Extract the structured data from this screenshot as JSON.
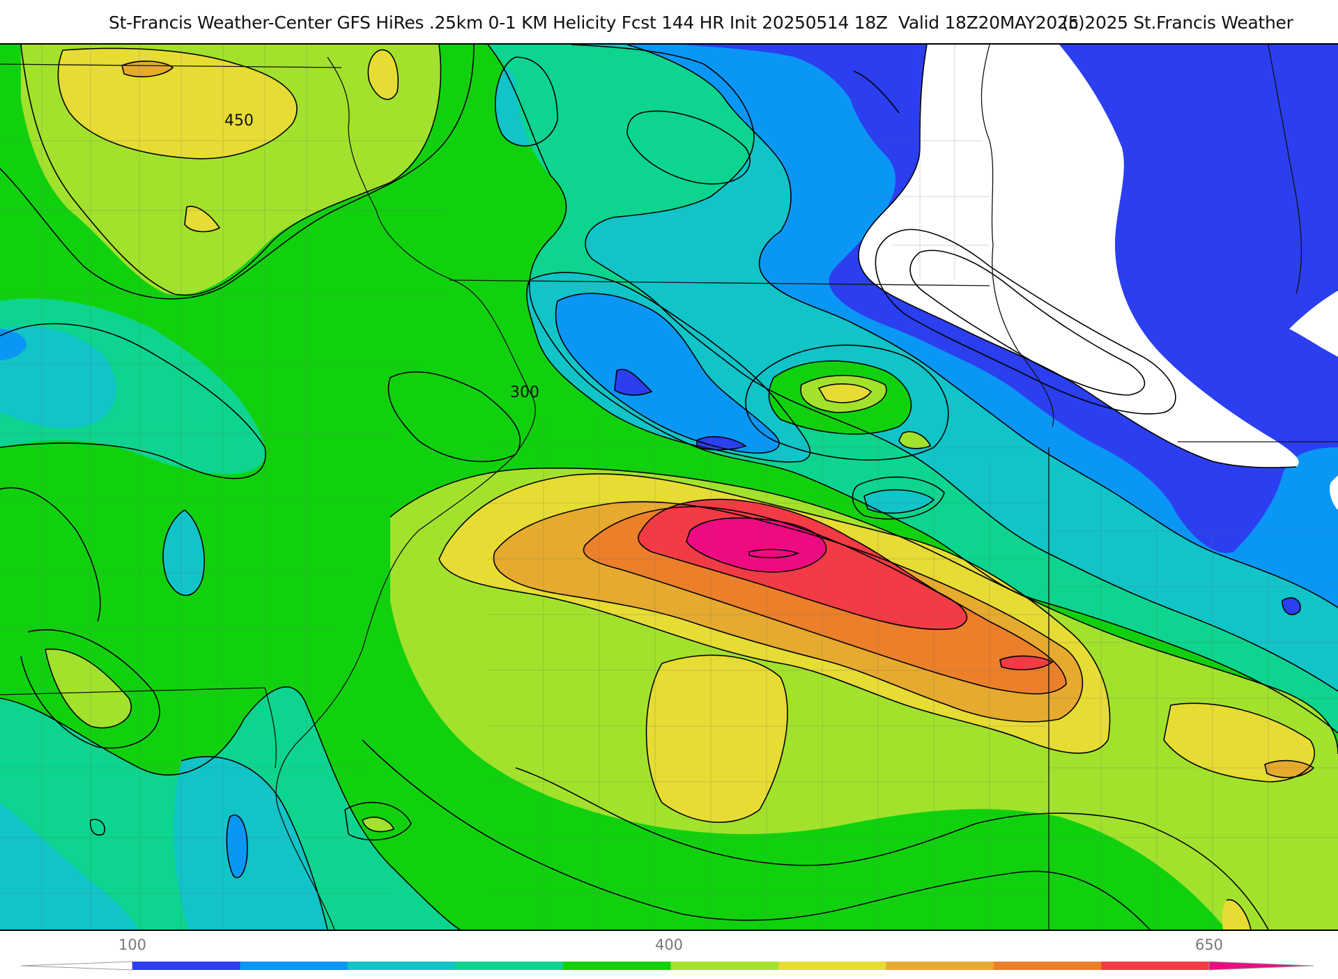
{
  "header": {
    "title": "St-Francis Weather-Center GFS HiRes .25km 0-1 KM Helicity Fcst 144 HR Init 20250514 18Z  Valid 18Z20MAY2025",
    "copyright": "(c)2025 St.Francis Weather"
  },
  "map": {
    "contour_labels": [
      "450",
      "300"
    ]
  },
  "colorbar": {
    "tick_labels": [
      "100",
      "400",
      "650"
    ],
    "colors": [
      "#2b3ff0",
      "#0a96f5",
      "#10c4c8",
      "#0dd48e",
      "#11d10f",
      "#a3e22c",
      "#e6dc34",
      "#e6aa2f",
      "#ec7f2a",
      "#f23b45",
      "#ef0a82"
    ]
  }
}
